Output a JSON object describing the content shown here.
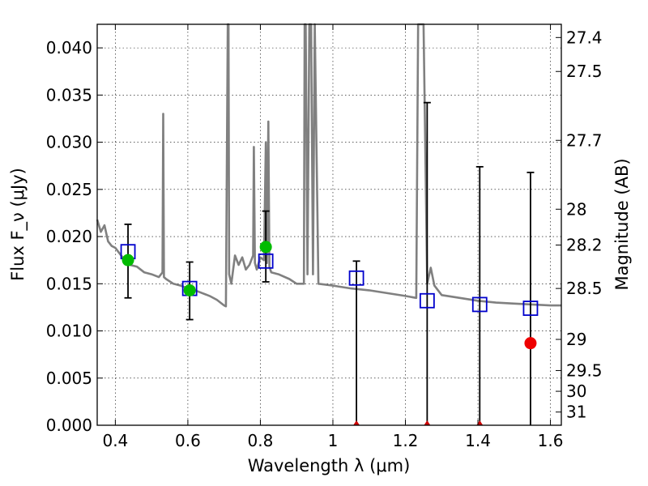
{
  "chart_data": {
    "type": "scatter",
    "xlabel": "Wavelength λ (μm)",
    "ylabel": "Flux F_ν (μJy)",
    "ylabel_right": "Magnitude (AB)",
    "xlim": [
      0.35,
      1.63
    ],
    "ylim": [
      0.0,
      0.0425
    ],
    "grid": true,
    "x_ticks": [
      {
        "value": 0.4,
        "label": "0.4"
      },
      {
        "value": 0.6,
        "label": "0.6"
      },
      {
        "value": 0.8,
        "label": "0.8"
      },
      {
        "value": 1.0,
        "label": "1"
      },
      {
        "value": 1.2,
        "label": "1.2"
      },
      {
        "value": 1.4,
        "label": "1.4"
      },
      {
        "value": 1.6,
        "label": "1.6"
      }
    ],
    "y_ticks": [
      {
        "value": 0.0,
        "label": "0.000"
      },
      {
        "value": 0.005,
        "label": "0.005"
      },
      {
        "value": 0.01,
        "label": "0.010"
      },
      {
        "value": 0.015,
        "label": "0.015"
      },
      {
        "value": 0.02,
        "label": "0.020"
      },
      {
        "value": 0.025,
        "label": "0.025"
      },
      {
        "value": 0.03,
        "label": "0.030"
      },
      {
        "value": 0.035,
        "label": "0.035"
      },
      {
        "value": 0.04,
        "label": "0.040"
      }
    ],
    "mag_ticks": [
      {
        "value": 0.0411,
        "label": "27.4"
      },
      {
        "value": 0.0375,
        "label": "27.5"
      },
      {
        "value": 0.0302,
        "label": "27.7"
      },
      {
        "value": 0.0229,
        "label": "28"
      },
      {
        "value": 0.0191,
        "label": "28.2"
      },
      {
        "value": 0.0145,
        "label": "28.5"
      },
      {
        "value": 0.0091,
        "label": "29"
      },
      {
        "value": 0.0058,
        "label": "29.5"
      },
      {
        "value": 0.0036,
        "label": "30"
      },
      {
        "value": 0.0014,
        "label": "31"
      }
    ],
    "series": [
      {
        "kind": "spectrum",
        "color": "#808080",
        "x": [
          0.35,
          0.36,
          0.37,
          0.38,
          0.39,
          0.4,
          0.41,
          0.42,
          0.43,
          0.44,
          0.46,
          0.48,
          0.5,
          0.52,
          0.53,
          0.532,
          0.534,
          0.54,
          0.56,
          0.58,
          0.6,
          0.62,
          0.64,
          0.66,
          0.68,
          0.7,
          0.705,
          0.71,
          0.712,
          0.714,
          0.72,
          0.73,
          0.74,
          0.75,
          0.76,
          0.77,
          0.78,
          0.782,
          0.785,
          0.79,
          0.8,
          0.81,
          0.815,
          0.818,
          0.822,
          0.825,
          0.83,
          0.85,
          0.88,
          0.9,
          0.92,
          0.922,
          0.925,
          0.93,
          0.935,
          0.94,
          0.945,
          0.95,
          0.96,
          1.0,
          1.05,
          1.1,
          1.15,
          1.2,
          1.23,
          1.235,
          1.24,
          1.245,
          1.25,
          1.26,
          1.27,
          1.28,
          1.3,
          1.35,
          1.4,
          1.45,
          1.5,
          1.55,
          1.6,
          1.63
        ],
        "y": [
          0.0218,
          0.0205,
          0.0212,
          0.0195,
          0.019,
          0.0188,
          0.0183,
          0.0178,
          0.0175,
          0.017,
          0.0168,
          0.0162,
          0.016,
          0.0157,
          0.0162,
          0.033,
          0.0157,
          0.0155,
          0.015,
          0.0148,
          0.0145,
          0.0143,
          0.014,
          0.0137,
          0.0133,
          0.0127,
          0.0126,
          0.043,
          0.043,
          0.016,
          0.015,
          0.018,
          0.017,
          0.0178,
          0.0165,
          0.017,
          0.018,
          0.0295,
          0.0172,
          0.0165,
          0.0178,
          0.0175,
          0.03,
          0.0172,
          0.0322,
          0.0168,
          0.0162,
          0.016,
          0.0155,
          0.015,
          0.015,
          0.043,
          0.043,
          0.016,
          0.043,
          0.043,
          0.016,
          0.043,
          0.015,
          0.0148,
          0.0145,
          0.0143,
          0.014,
          0.0137,
          0.0135,
          0.043,
          0.043,
          0.043,
          0.043,
          0.015,
          0.0167,
          0.0148,
          0.0138,
          0.0135,
          0.0132,
          0.013,
          0.0129,
          0.0128,
          0.0127,
          0.0127
        ]
      },
      {
        "kind": "errorbars",
        "color": "#000000",
        "x": [
          0.435,
          0.605,
          0.815,
          1.065,
          1.26,
          1.405,
          1.545
        ],
        "y_low": [
          0.0135,
          0.0112,
          0.0152,
          0.0,
          0.0,
          0.0,
          0.0
        ],
        "y_high": [
          0.0213,
          0.0173,
          0.0227,
          0.0174,
          0.0342,
          0.0274,
          0.0268
        ]
      },
      {
        "kind": "squares",
        "color": "#0000cc",
        "x": [
          0.435,
          0.605,
          0.815,
          1.065,
          1.26,
          1.405,
          1.545
        ],
        "y": [
          0.0184,
          0.0145,
          0.0174,
          0.0156,
          0.0132,
          0.0128,
          0.0124
        ]
      },
      {
        "kind": "dots",
        "color": "#00bb00",
        "x": [
          0.435,
          0.605,
          0.815
        ],
        "y": [
          0.0175,
          0.0143,
          0.0189
        ]
      },
      {
        "kind": "dots",
        "color": "#ee0000",
        "x": [
          1.545
        ],
        "y": [
          0.0087
        ]
      },
      {
        "kind": "lower_markers",
        "color": "#cc0000",
        "x": [
          1.065,
          1.26,
          1.405
        ],
        "y": [
          0.0,
          0.0,
          0.0
        ]
      }
    ]
  }
}
